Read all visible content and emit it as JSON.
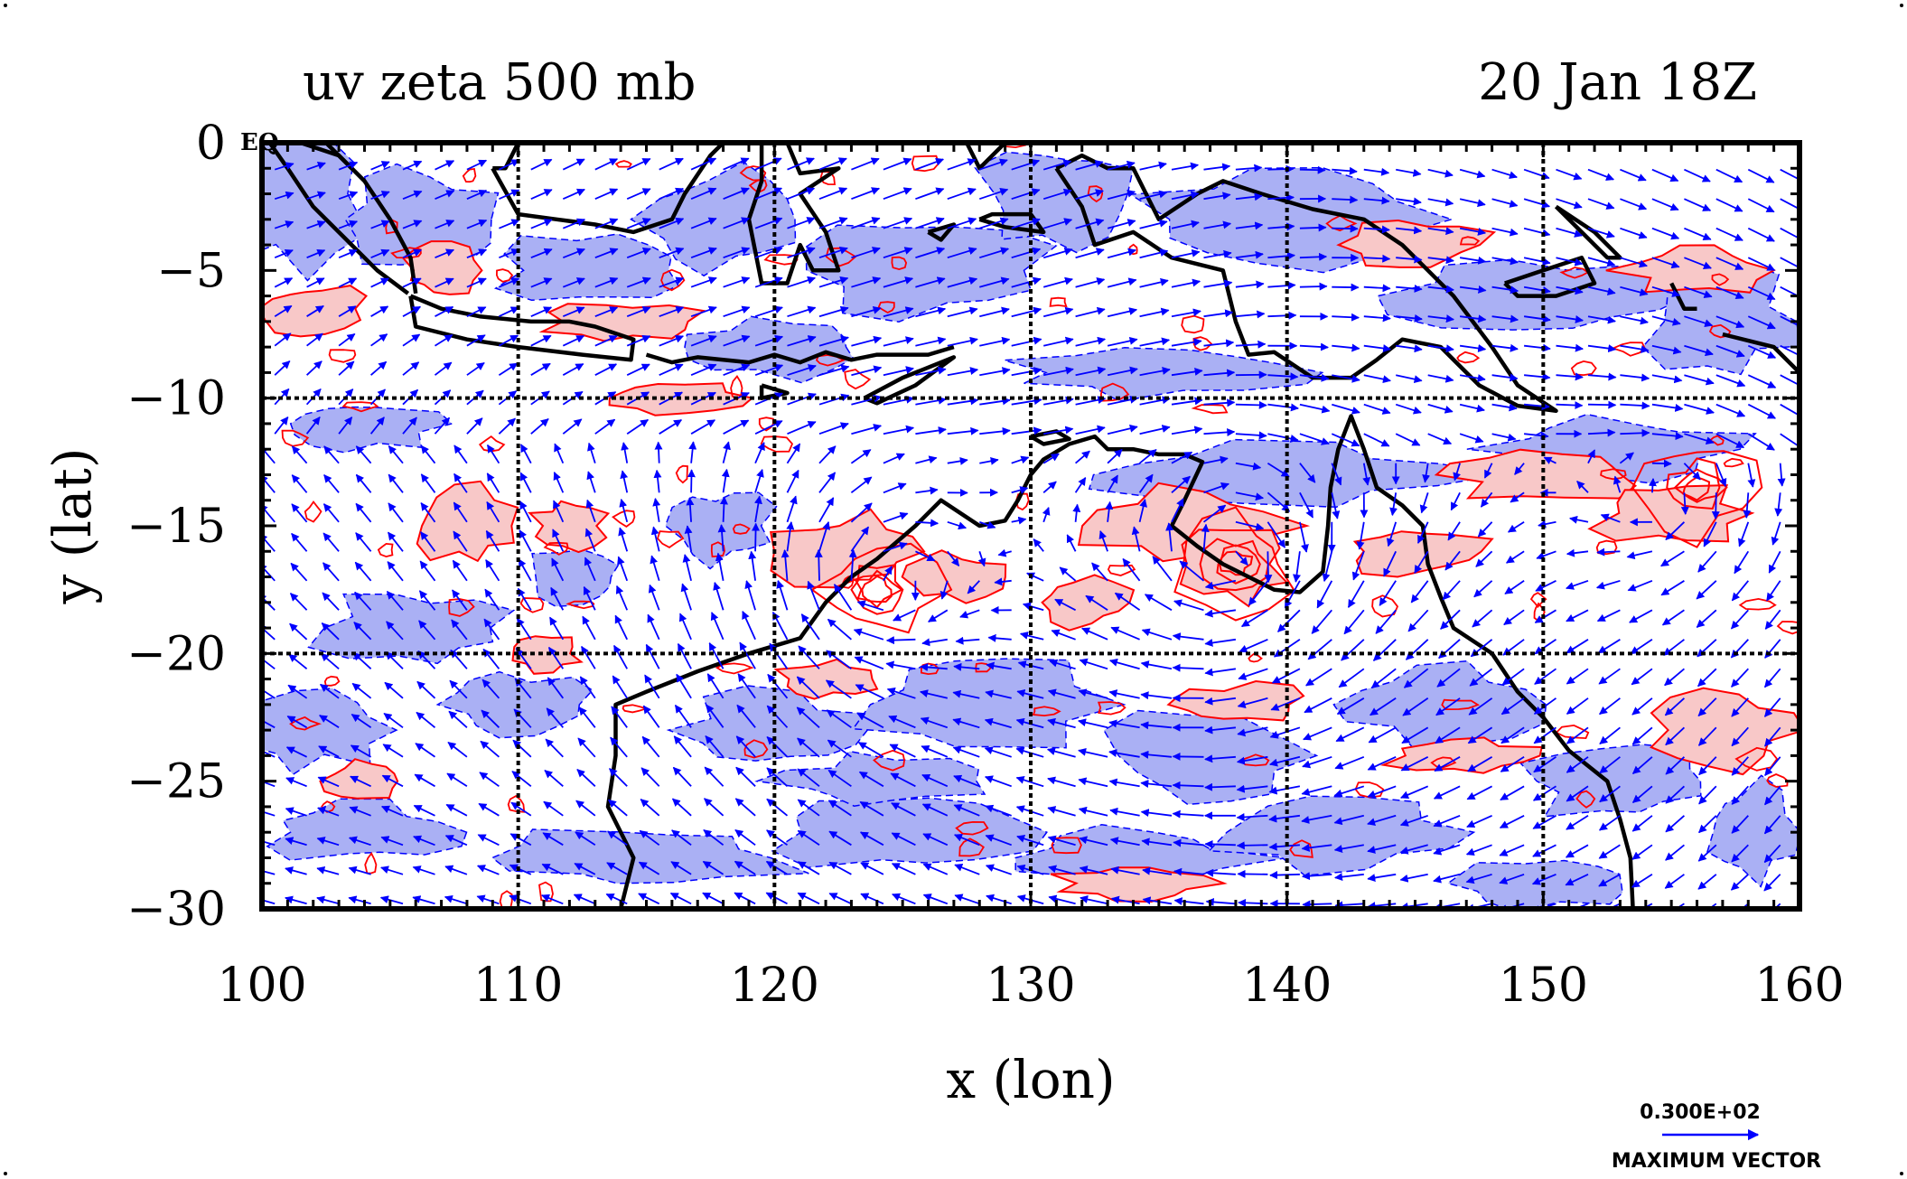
{
  "figure": {
    "title_left": "uv zeta 500 mb",
    "title_right": "20 Jan 18Z",
    "xlabel": "x (lon)",
    "ylabel": "y (lat)",
    "eq_label": "EQ",
    "key_value": "0.300E+02",
    "key_label": "MAXIMUM VECTOR"
  },
  "map": {
    "lon_range": [
      100,
      160
    ],
    "lat_range": [
      -30,
      0
    ],
    "x_ticks": [
      "100",
      "110",
      "120",
      "130",
      "140",
      "150",
      "160"
    ],
    "y_ticks": [
      "0",
      "−5",
      "−10",
      "−15",
      "−20",
      "−25",
      "−30"
    ],
    "grid_lons": [
      110,
      120,
      130,
      140,
      150
    ],
    "grid_lats": [
      -10,
      -20
    ],
    "colors": {
      "positive_vorticity_fill": "#f8c8c8",
      "positive_vorticity_contour": "#ff0000",
      "negative_vorticity_fill": "#aab0f4",
      "wind_vector": "#0000ff",
      "coastline": "#000000",
      "grid": "#000000"
    }
  }
}
